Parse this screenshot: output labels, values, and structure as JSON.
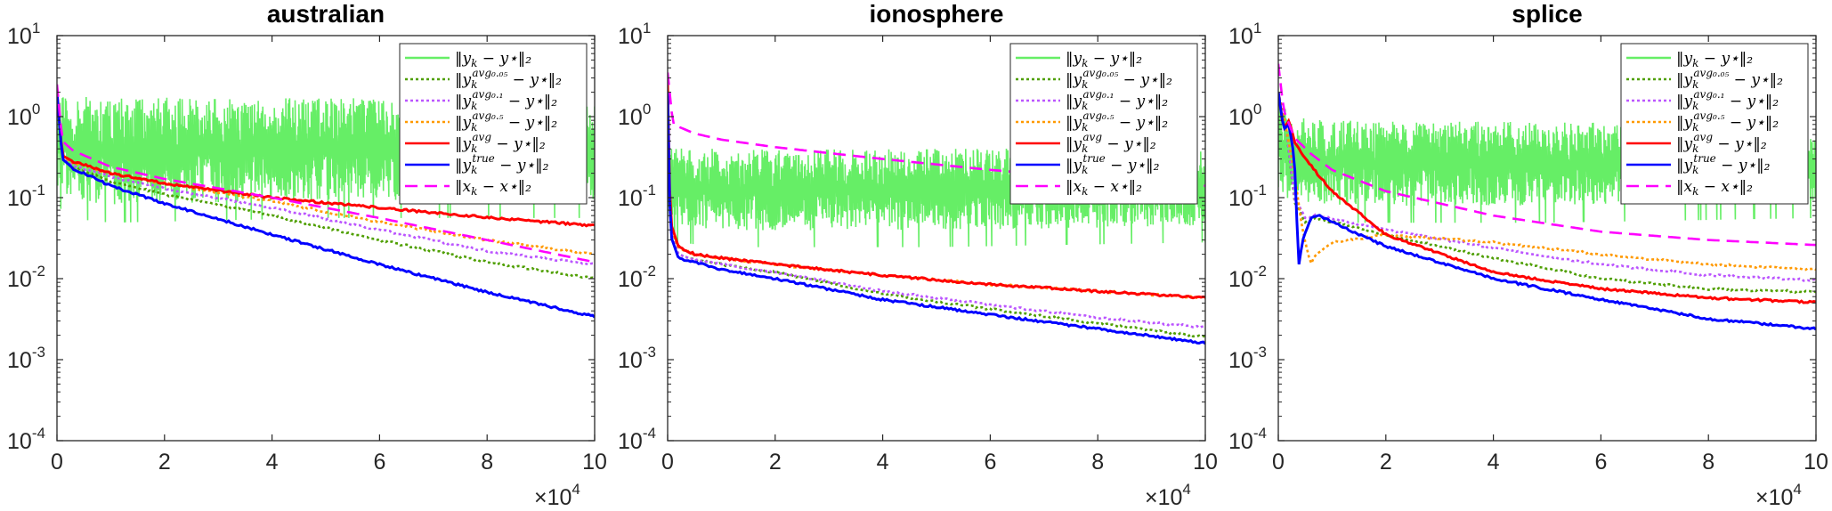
{
  "chart_data": [
    {
      "type": "line",
      "title": "australian",
      "xlim": [
        0,
        100000
      ],
      "ylim": [
        0.0001,
        10
      ],
      "yscale": "log",
      "x_tick_labels": [
        "0",
        "2",
        "4",
        "6",
        "8",
        "10"
      ],
      "x_tick_values": [
        0,
        20000,
        40000,
        60000,
        80000,
        100000
      ],
      "x_multiplier": {
        "base": "×10",
        "exp": "4"
      },
      "y_tick_values": [
        0.0001,
        0.001,
        0.01,
        0.1,
        1,
        10
      ],
      "y_tick_labels": [
        {
          "base": "10",
          "exp": "-4"
        },
        {
          "base": "10",
          "exp": "-3"
        },
        {
          "base": "10",
          "exp": "-2"
        },
        {
          "base": "10",
          "exp": "-1"
        },
        {
          "base": "10",
          "exp": "0"
        },
        {
          "base": "10",
          "exp": "1"
        }
      ],
      "legend_position": "top-right",
      "band": {
        "x": [
          0,
          2000,
          10000,
          50000,
          100000
        ],
        "low": [
          0.12,
          0.08,
          0.07,
          0.08,
          0.08
        ],
        "high": [
          2.0,
          1.8,
          1.8,
          1.7,
          1.6
        ]
      },
      "series": [
        {
          "x": [
            0,
            1000,
            3000,
            10000,
            20000,
            40000,
            60000,
            80000,
            100000
          ],
          "y": [
            2.0,
            0.3,
            0.24,
            0.16,
            0.11,
            0.06,
            0.03,
            0.016,
            0.01
          ],
          "label": {
            "main": "‖y",
            "sub": "k",
            "sup": "avg₀.₀₅",
            "tail": " − y⋆‖₂"
          }
        },
        {
          "x": [
            0,
            1000,
            3000,
            10000,
            20000,
            40000,
            60000,
            80000,
            100000
          ],
          "y": [
            2.0,
            0.31,
            0.25,
            0.18,
            0.13,
            0.075,
            0.04,
            0.022,
            0.015
          ],
          "label": {
            "main": "‖y",
            "sub": "k",
            "sup": "avg₀.₁",
            "tail": " − y⋆‖₂"
          }
        },
        {
          "x": [
            0,
            1000,
            3000,
            10000,
            20000,
            40000,
            60000,
            80000,
            100000
          ],
          "y": [
            2.0,
            0.32,
            0.27,
            0.2,
            0.15,
            0.09,
            0.05,
            0.03,
            0.02
          ],
          "label": {
            "main": "‖y",
            "sub": "k",
            "sup": "avg₀.₅",
            "tail": " − y⋆‖₂"
          }
        },
        {
          "x": [
            0,
            1000,
            3000,
            10000,
            20000,
            40000,
            60000,
            80000,
            100000
          ],
          "y": [
            2.0,
            0.33,
            0.28,
            0.2,
            0.15,
            0.1,
            0.075,
            0.057,
            0.045
          ],
          "label": {
            "main": "‖y",
            "sub": "k",
            "sup": "avg",
            "tail": " − y⋆‖₂"
          }
        },
        {
          "x": [
            0,
            1000,
            3000,
            10000,
            20000,
            40000,
            60000,
            80000,
            100000
          ],
          "y": [
            2.0,
            0.3,
            0.23,
            0.14,
            0.085,
            0.035,
            0.015,
            0.0068,
            0.0034
          ],
          "label": {
            "main": "‖y",
            "sub": "k",
            "sup": "true",
            "tail": " − y⋆‖₂"
          }
        },
        {
          "x": [
            0,
            1000,
            3000,
            10000,
            20000,
            40000,
            60000,
            80000,
            100000
          ],
          "y": [
            2.5,
            0.5,
            0.38,
            0.24,
            0.17,
            0.1,
            0.056,
            0.03,
            0.016
          ],
          "label": {
            "main": "‖x",
            "sub": "k",
            "sup": "",
            "tail": " − x⋆‖₂"
          }
        }
      ]
    },
    {
      "type": "line",
      "title": "ionosphere",
      "xlim": [
        0,
        100000
      ],
      "ylim": [
        0.0001,
        10
      ],
      "yscale": "log",
      "x_tick_labels": [
        "0",
        "2",
        "4",
        "6",
        "8",
        "10"
      ],
      "x_tick_values": [
        0,
        20000,
        40000,
        60000,
        80000,
        100000
      ],
      "x_multiplier": {
        "base": "×10",
        "exp": "4"
      },
      "y_tick_values": [
        0.0001,
        0.001,
        0.01,
        0.1,
        1,
        10
      ],
      "y_tick_labels": [
        {
          "base": "10",
          "exp": "-4"
        },
        {
          "base": "10",
          "exp": "-3"
        },
        {
          "base": "10",
          "exp": "-2"
        },
        {
          "base": "10",
          "exp": "-1"
        },
        {
          "base": "10",
          "exp": "0"
        },
        {
          "base": "10",
          "exp": "1"
        }
      ],
      "legend_position": "top-right",
      "band": {
        "x": [
          0,
          2000,
          10000,
          50000,
          100000
        ],
        "low": [
          0.05,
          0.04,
          0.035,
          0.035,
          0.04
        ],
        "high": [
          0.5,
          0.45,
          0.4,
          0.4,
          0.42
        ]
      },
      "series": [
        {
          "x": [
            0,
            500,
            2000,
            5000,
            10000,
            20000,
            40000,
            60000,
            80000,
            100000
          ],
          "y": [
            2.0,
            0.04,
            0.02,
            0.017,
            0.015,
            0.012,
            0.0065,
            0.0042,
            0.0028,
            0.0019
          ],
          "label": {
            "main": "‖y",
            "sub": "k",
            "sup": "avg₀.₀₅",
            "tail": " − y⋆‖₂"
          }
        },
        {
          "x": [
            0,
            500,
            2000,
            5000,
            10000,
            20000,
            40000,
            60000,
            80000,
            100000
          ],
          "y": [
            2.0,
            0.04,
            0.02,
            0.017,
            0.015,
            0.012,
            0.007,
            0.0048,
            0.0033,
            0.0025
          ],
          "label": {
            "main": "‖y",
            "sub": "k",
            "sup": "avg₀.₁",
            "tail": " − y⋆‖₂"
          }
        },
        {
          "x": [
            0,
            500,
            2000,
            5000,
            10000,
            20000,
            40000,
            60000,
            80000,
            100000
          ],
          "y": [
            2.0,
            0.045,
            0.024,
            0.02,
            0.018,
            0.015,
            0.011,
            0.0085,
            0.007,
            0.0058
          ],
          "label": {
            "main": "‖y",
            "sub": "k",
            "sup": "avg₀.₅",
            "tail": " − y⋆‖₂"
          }
        },
        {
          "x": [
            0,
            500,
            2000,
            5000,
            10000,
            20000,
            40000,
            60000,
            80000,
            100000
          ],
          "y": [
            2.5,
            0.05,
            0.025,
            0.02,
            0.018,
            0.015,
            0.011,
            0.0085,
            0.007,
            0.0058
          ],
          "label": {
            "main": "‖y",
            "sub": "k",
            "sup": "avg",
            "tail": " − y⋆‖₂"
          }
        },
        {
          "x": [
            0,
            500,
            2000,
            5000,
            10000,
            20000,
            40000,
            60000,
            80000,
            100000
          ],
          "y": [
            2.0,
            0.035,
            0.018,
            0.016,
            0.013,
            0.01,
            0.0055,
            0.0036,
            0.0024,
            0.0016
          ],
          "label": {
            "main": "‖y",
            "sub": "k",
            "sup": "true",
            "tail": " − y⋆‖₂"
          }
        },
        {
          "x": [
            0,
            1000,
            5000,
            10000,
            20000,
            40000,
            60000,
            80000,
            100000
          ],
          "y": [
            3.5,
            0.8,
            0.62,
            0.52,
            0.42,
            0.3,
            0.22,
            0.17,
            0.14
          ],
          "label": {
            "main": "‖x",
            "sub": "k",
            "sup": "",
            "tail": " − x⋆‖₂"
          }
        }
      ]
    },
    {
      "type": "line",
      "title": "splice",
      "xlim": [
        0,
        100000
      ],
      "ylim": [
        0.0001,
        10
      ],
      "yscale": "log",
      "x_tick_labels": [
        "0",
        "2",
        "4",
        "6",
        "8",
        "10"
      ],
      "x_tick_values": [
        0,
        20000,
        40000,
        60000,
        80000,
        100000
      ],
      "x_multiplier": {
        "base": "×10",
        "exp": "4"
      },
      "y_tick_values": [
        0.0001,
        0.001,
        0.01,
        0.1,
        1,
        10
      ],
      "y_tick_labels": [
        {
          "base": "10",
          "exp": "-4"
        },
        {
          "base": "10",
          "exp": "-3"
        },
        {
          "base": "10",
          "exp": "-2"
        },
        {
          "base": "10",
          "exp": "-1"
        },
        {
          "base": "10",
          "exp": "0"
        },
        {
          "base": "10",
          "exp": "1"
        }
      ],
      "legend_position": "top-right",
      "band": {
        "x": [
          0,
          2000,
          10000,
          50000,
          100000
        ],
        "low": [
          0.1,
          0.08,
          0.07,
          0.07,
          0.08
        ],
        "high": [
          2.0,
          1.0,
          0.9,
          0.85,
          0.8
        ]
      },
      "series": [
        {
          "x": [
            0,
            1500,
            3000,
            5000,
            7000,
            10000,
            20000,
            40000,
            60000,
            80000,
            100000
          ],
          "y": [
            2.0,
            0.7,
            0.09,
            0.05,
            0.055,
            0.05,
            0.035,
            0.018,
            0.01,
            0.0075,
            0.0068
          ],
          "label": {
            "main": "‖y",
            "sub": "k",
            "sup": "avg₀.₀₅",
            "tail": " − y⋆‖₂"
          }
        },
        {
          "x": [
            0,
            1500,
            3000,
            5000,
            7000,
            10000,
            20000,
            40000,
            60000,
            80000,
            100000
          ],
          "y": [
            2.0,
            0.7,
            0.1,
            0.055,
            0.062,
            0.055,
            0.04,
            0.024,
            0.015,
            0.011,
            0.0095
          ],
          "label": {
            "main": "‖y",
            "sub": "k",
            "sup": "avg₀.₁",
            "tail": " − y⋆‖₂"
          }
        },
        {
          "x": [
            0,
            1500,
            3000,
            4500,
            6000,
            7000,
            10000,
            20000,
            40000,
            60000,
            80000,
            100000
          ],
          "y": [
            2.0,
            0.7,
            0.2,
            0.04,
            0.015,
            0.02,
            0.028,
            0.035,
            0.028,
            0.02,
            0.015,
            0.013
          ],
          "label": {
            "main": "‖y",
            "sub": "k",
            "sup": "avg₀.₅",
            "tail": " − y⋆‖₂"
          }
        },
        {
          "x": [
            0,
            1000,
            2000,
            3000,
            5000,
            10000,
            20000,
            40000,
            60000,
            80000,
            100000
          ],
          "y": [
            2.0,
            0.7,
            0.9,
            0.5,
            0.3,
            0.12,
            0.035,
            0.012,
            0.0075,
            0.0058,
            0.0051
          ],
          "label": {
            "main": "‖y",
            "sub": "k",
            "sup": "avg",
            "tail": " − y⋆‖₂"
          }
        },
        {
          "x": [
            0,
            1000,
            2000,
            3000,
            3800,
            4500,
            6000,
            7500,
            10000,
            20000,
            40000,
            60000,
            80000,
            100000
          ],
          "y": [
            2.0,
            0.7,
            0.8,
            0.3,
            0.014,
            0.03,
            0.055,
            0.06,
            0.05,
            0.025,
            0.01,
            0.0055,
            0.0032,
            0.0024
          ],
          "label": {
            "main": "‖y",
            "sub": "k",
            "sup": "true",
            "tail": " − y⋆‖₂"
          }
        },
        {
          "x": [
            0,
            1000,
            3000,
            6000,
            10000,
            20000,
            40000,
            60000,
            80000,
            100000
          ],
          "y": [
            4.5,
            1.2,
            0.55,
            0.35,
            0.22,
            0.12,
            0.06,
            0.038,
            0.03,
            0.026
          ],
          "label": {
            "main": "‖x",
            "sub": "k",
            "sup": "",
            "tail": " − x⋆‖₂"
          }
        }
      ]
    }
  ],
  "band_label": {
    "main": "‖y",
    "sub": "k",
    "sup": "",
    "tail": " − y⋆‖₂"
  },
  "style": {
    "band_color": "#66ee66",
    "series_colors": [
      "#4f9f00",
      "#bb55ff",
      "#ff9900",
      "#ff0000",
      "#0000ff",
      "#ff00ff"
    ],
    "series_dash": [
      "3,3",
      "3,3",
      "3,3",
      "",
      "",
      "14,8"
    ]
  }
}
